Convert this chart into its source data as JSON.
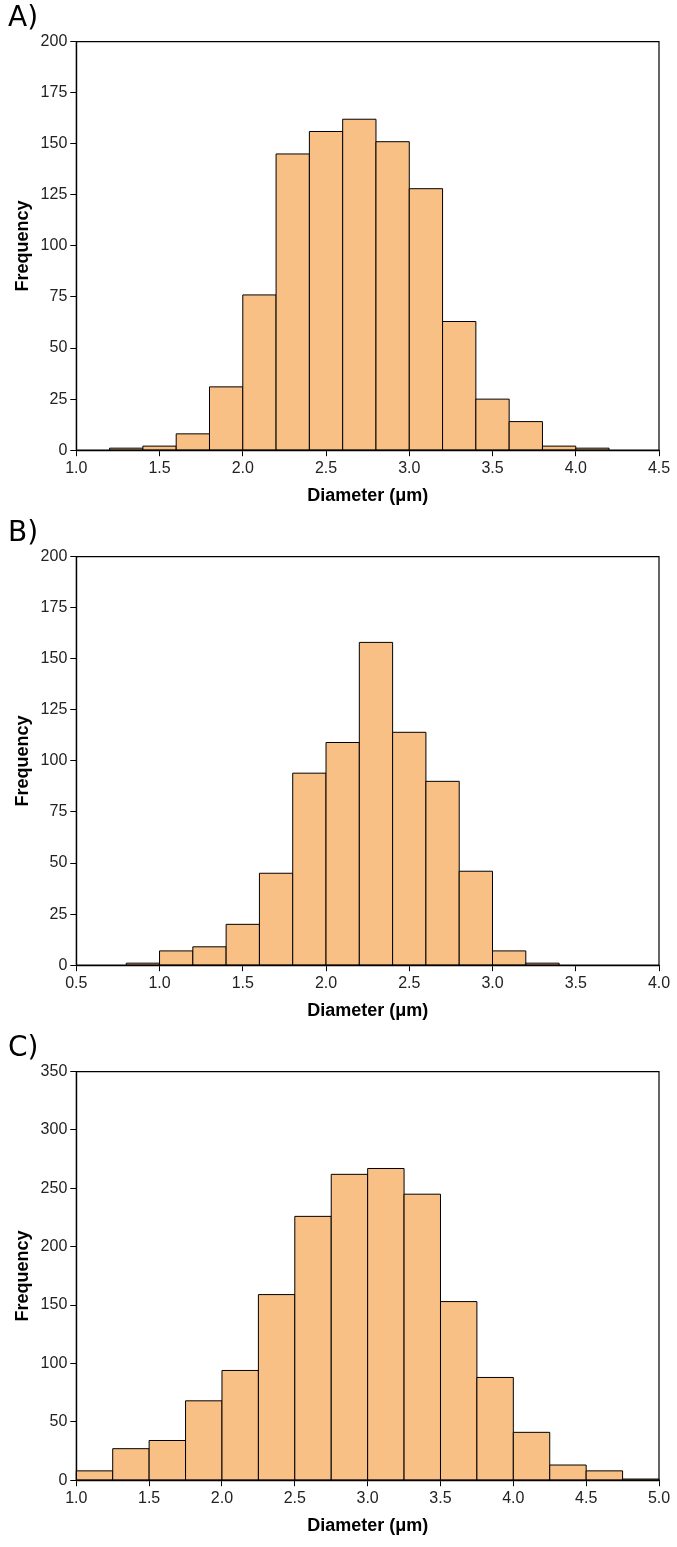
{
  "chart_data": [
    {
      "type": "histogram",
      "title": "A)",
      "xlabel": "Diameter (μm)",
      "ylabel": "Frequency",
      "color": "#f9c086",
      "bins": [
        1.2,
        1.4,
        1.6,
        1.8,
        2.0,
        2.2,
        2.4,
        2.6,
        2.8,
        3.0,
        3.2,
        3.4,
        3.6,
        3.8,
        4.0,
        4.2
      ],
      "values": [
        1,
        2,
        8,
        31,
        76,
        145,
        156,
        162,
        151,
        128,
        63,
        25,
        14,
        2,
        1
      ],
      "xlim": [
        1.0,
        4.5
      ],
      "xticks": [
        {
          "value": 1,
          "label": "1.0"
        },
        1.5,
        {
          "value": 2,
          "label": "2.0"
        },
        2.5,
        {
          "value": 3,
          "label": "3.0"
        },
        3.5,
        {
          "value": 4,
          "label": "4.0"
        },
        4.5
      ],
      "ylim": [
        0,
        200
      ],
      "yticks": [
        0,
        25,
        50,
        75,
        100,
        125,
        150,
        175,
        200
      ]
    },
    {
      "type": "histogram",
      "title": "B)",
      "xlabel": "Diameter (μm)",
      "ylabel": "Frequency",
      "color": "#f9c086",
      "bins": [
        0.8,
        1.0,
        1.2,
        1.4,
        1.6,
        1.8,
        2.0,
        2.2,
        2.4,
        2.6,
        2.8,
        3.0,
        3.2,
        3.4
      ],
      "values": [
        1,
        7,
        9,
        20,
        45,
        94,
        109,
        158,
        114,
        90,
        46,
        7,
        1
      ],
      "xlim": [
        0.5,
        4.0
      ],
      "xticks": [
        0.5,
        {
          "value": 1,
          "label": "1.0"
        },
        1.5,
        {
          "value": 2,
          "label": "2.0"
        },
        2.5,
        {
          "value": 3,
          "label": "3.0"
        },
        3.5,
        {
          "value": 4,
          "label": "4.0"
        }
      ],
      "ylim": [
        0,
        200
      ],
      "yticks": [
        0,
        25,
        50,
        75,
        100,
        125,
        150,
        175,
        200
      ]
    },
    {
      "type": "histogram",
      "title": "C)",
      "xlabel": "Diameter (μm)",
      "ylabel": "Frequency",
      "color": "#f9c086",
      "bins": [
        1.0,
        1.25,
        1.5,
        1.75,
        2.0,
        2.25,
        2.5,
        2.75,
        3.0,
        3.25,
        3.5,
        3.75,
        4.0,
        4.25,
        4.5,
        4.75,
        5.0
      ],
      "values": [
        8,
        27,
        34,
        68,
        94,
        159,
        226,
        262,
        267,
        245,
        153,
        88,
        41,
        13,
        8,
        1
      ],
      "xlim": [
        1.0,
        5.0
      ],
      "xticks": [
        {
          "value": 1,
          "label": "1.0"
        },
        1.5,
        {
          "value": 2,
          "label": "2.0"
        },
        2.5,
        {
          "value": 3,
          "label": "3.0"
        },
        3.5,
        {
          "value": 4,
          "label": "4.0"
        },
        4.5,
        {
          "value": 5,
          "label": "5.0"
        }
      ],
      "ylim": [
        0,
        350
      ],
      "yticks": [
        0,
        50,
        100,
        150,
        200,
        250,
        300,
        350
      ]
    }
  ]
}
